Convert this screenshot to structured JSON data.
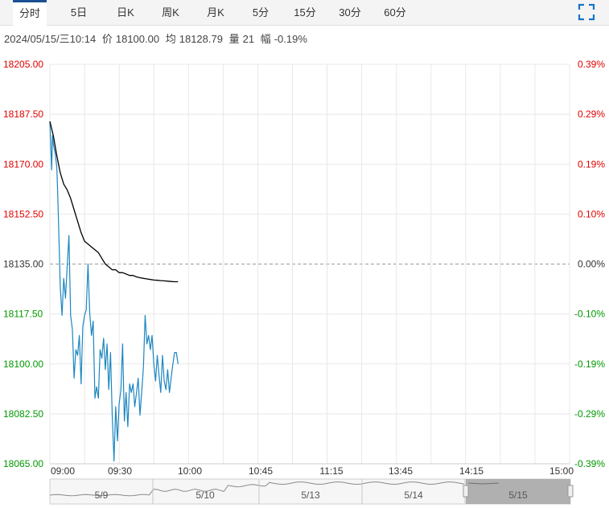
{
  "tabs": [
    {
      "label": "分时",
      "active": true
    },
    {
      "label": "5日"
    },
    {
      "label": "日K"
    },
    {
      "label": "周K"
    },
    {
      "label": "月K"
    },
    {
      "label": "5分"
    },
    {
      "label": "15分"
    },
    {
      "label": "30分"
    },
    {
      "label": "60分"
    }
  ],
  "info": {
    "datetime": "2024/05/15/三10:14",
    "price_label": "价",
    "price": "18100.00",
    "avg_label": "均",
    "avg": "18128.79",
    "vol_label": "量",
    "vol": "21",
    "chg_label": "幅",
    "chg": "-0.19%"
  },
  "colors": {
    "up": "#e00000",
    "down": "#009900",
    "neutral": "#333333",
    "price_line": "#1c86c0",
    "avg_line": "#000000",
    "grid": "#e8e8e8",
    "accent": "#1a4f93"
  },
  "chart_data": {
    "type": "line",
    "base_price": 18135,
    "ylim": [
      18065,
      18205
    ],
    "y_ticks_left": [
      "18205.00",
      "18187.50",
      "18170.00",
      "18152.50",
      "18135.00",
      "18117.50",
      "18100.00",
      "18082.50",
      "18065.00"
    ],
    "y_ticks_right": [
      "0.39%",
      "0.29%",
      "0.19%",
      "0.10%",
      "0.00%",
      "-0.10%",
      "-0.19%",
      "-0.29%",
      "-0.39%"
    ],
    "x_ticks": [
      "09:00",
      "09:30",
      "10:00",
      "10:45",
      "11:15",
      "13:45",
      "14:15",
      "15:00"
    ],
    "session_minutes": 300,
    "series": [
      {
        "key": "price",
        "x": [
          0,
          1,
          1.5,
          2,
          3,
          4,
          4.5,
          5,
          6,
          7,
          8,
          9,
          10,
          11,
          12,
          13,
          14,
          15,
          16,
          17,
          18,
          19,
          20,
          21,
          22,
          23,
          24,
          25,
          26,
          27,
          28,
          29,
          30,
          31,
          32,
          33,
          34,
          35,
          36,
          37,
          38,
          39,
          40,
          41,
          42,
          43,
          44,
          45,
          46,
          47,
          48,
          49,
          50,
          51,
          52,
          53,
          54,
          55,
          56,
          57,
          58,
          59,
          60,
          61,
          62,
          63,
          64,
          65,
          66,
          67,
          68,
          69,
          70,
          71,
          72,
          73,
          74
        ],
        "values": [
          18185,
          18168,
          18180,
          18177,
          18174,
          18169,
          18160,
          18149,
          18127,
          18117,
          18130,
          18123,
          18134,
          18145,
          18117,
          18112,
          18095,
          18105,
          18103,
          18110,
          18093,
          18113,
          18117,
          18119,
          18135,
          18118,
          18110,
          18115,
          18088,
          18092,
          18088,
          18105,
          18102,
          18109,
          18098,
          18107,
          18091,
          18104,
          18082,
          18066,
          18085,
          18073,
          18086,
          18091,
          18107,
          18080,
          18090,
          18078,
          18093,
          18090,
          18093,
          18085,
          18090,
          18095,
          18082,
          18090,
          18099,
          18117,
          18107,
          18110,
          18105,
          18110,
          18100,
          18094,
          18103,
          18096,
          18090,
          18103,
          18094,
          18091,
          18098,
          18090,
          18095,
          18100,
          18104,
          18104,
          18100
        ]
      },
      {
        "key": "average",
        "x": [
          0,
          2,
          4,
          6,
          8,
          10,
          12,
          14,
          16,
          18,
          20,
          22,
          24,
          26,
          28,
          30,
          32,
          34,
          36,
          38,
          40,
          42,
          44,
          46,
          48,
          50,
          52,
          54,
          56,
          58,
          60,
          62,
          64,
          66,
          68,
          70,
          72,
          74
        ],
        "values": [
          18185,
          18180,
          18173,
          18167,
          18163,
          18161,
          18158,
          18154,
          18150,
          18146,
          18143,
          18142,
          18141,
          18140,
          18139,
          18137,
          18135,
          18134,
          18133,
          18133,
          18132,
          18132,
          18131.5,
          18131,
          18131,
          18130.5,
          18130.2,
          18130,
          18129.8,
          18129.6,
          18129.4,
          18129.3,
          18129.2,
          18129.1,
          18129,
          18128.9,
          18128.8,
          18128.8
        ]
      }
    ]
  },
  "navigator": {
    "dates": [
      "5/9",
      "5/10",
      "5/13",
      "5/14",
      "5/15"
    ]
  }
}
